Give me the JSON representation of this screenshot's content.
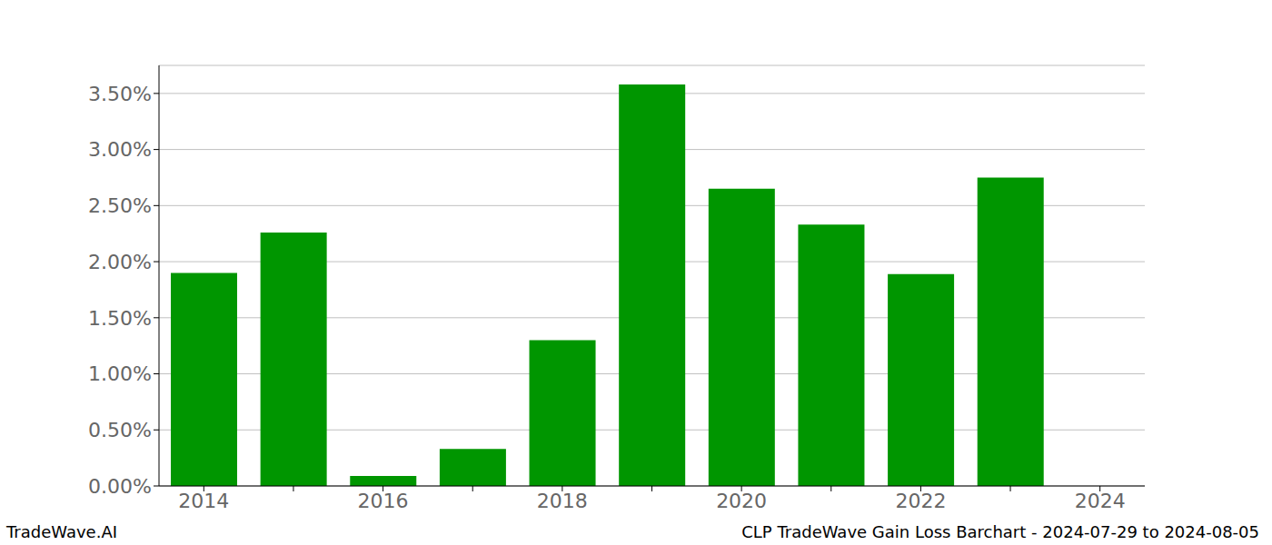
{
  "chart_data": {
    "type": "bar",
    "title": "CLP TradeWave Gain Loss Barchart - 2024-07-29 to 2024-08-05",
    "annotations": [
      "TradeWave.AI"
    ],
    "categories": [
      "2014",
      null,
      "2016",
      null,
      "2018",
      null,
      "2020",
      null,
      "2022",
      null,
      "2024"
    ],
    "values": [
      1.9,
      2.26,
      0.09,
      0.33,
      1.3,
      3.58,
      2.65,
      2.33,
      1.89,
      2.75,
      null
    ],
    "color": "#009600",
    "ylim": [
      0,
      3.75
    ],
    "yticks": [
      {
        "value": 0,
        "label": "0.00%"
      },
      {
        "value": 0.5,
        "label": "0.50%"
      },
      {
        "value": 1,
        "label": "1.00%"
      },
      {
        "value": 1.5,
        "label": "1.50%"
      },
      {
        "value": 2,
        "label": "2.00%"
      },
      {
        "value": 2.5,
        "label": "2.50%"
      },
      {
        "value": 3,
        "label": "3.00%"
      },
      {
        "value": 3.5,
        "label": "3.50%"
      }
    ],
    "grid": true
  }
}
